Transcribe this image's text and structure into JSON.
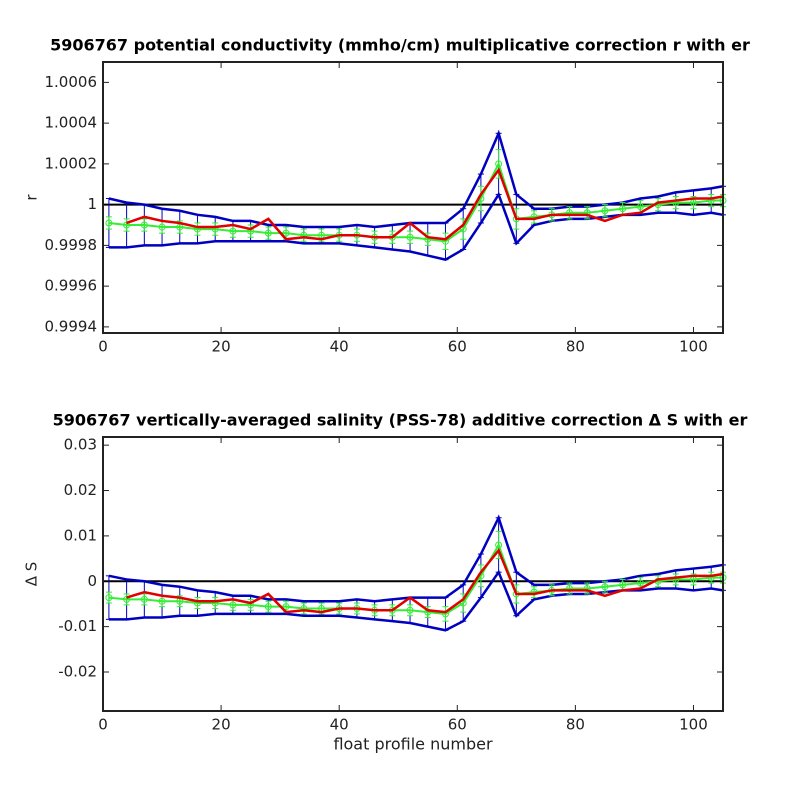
{
  "chart_data": [
    {
      "type": "line",
      "title": "5906767 potential conductivity (mmho/cm) multiplicative correction r with er",
      "ylabel": "r",
      "x": [
        1,
        4,
        7,
        10,
        13,
        16,
        19,
        22,
        25,
        28,
        31,
        34,
        37,
        40,
        43,
        46,
        49,
        52,
        55,
        58,
        61,
        64,
        67,
        70,
        73,
        76,
        79,
        82,
        85,
        88,
        91,
        94,
        97,
        100,
        103,
        105
      ],
      "xlim": [
        0,
        105
      ],
      "xticks": [
        0,
        20,
        40,
        60,
        80,
        100
      ],
      "ylim": [
        0.99937,
        1.0007
      ],
      "yticks": [
        0.9994,
        0.9996,
        0.9998,
        1,
        1.0002,
        1.0004,
        1.0006
      ],
      "hline": 1,
      "series": [
        {
          "color": "#0000c0",
          "values": [
            0.99991,
            0.9999,
            0.9999,
            0.99989,
            0.99989,
            0.99988,
            0.99988,
            0.99987,
            0.99987,
            0.99986,
            0.99986,
            0.99985,
            0.99985,
            0.99985,
            0.99985,
            0.99984,
            0.99984,
            0.99984,
            0.99983,
            0.99982,
            0.99988,
            1.00003,
            1.0002,
            0.99993,
            0.99994,
            0.99995,
            0.99996,
            0.99996,
            0.99997,
            0.99998,
            0.99999,
            1,
            1.00001,
            1.00001,
            1.00002,
            1.00002
          ],
          "errors": [
            0.00012,
            0.00011,
            0.0001,
            9e-05,
            8e-05,
            7e-05,
            6e-05,
            5e-05,
            5e-05,
            4e-05,
            4e-05,
            4e-05,
            4e-05,
            4e-05,
            5e-05,
            5e-05,
            6e-05,
            7e-05,
            8e-05,
            9e-05,
            0.0001,
            0.00012,
            0.00015,
            0.00012,
            4e-05,
            3e-05,
            3e-05,
            3e-05,
            3e-05,
            3e-05,
            4e-05,
            4e-05,
            5e-05,
            6e-05,
            6e-05,
            7e-05
          ]
        },
        {
          "color": "#33ee33",
          "marker": "o",
          "values": [
            0.99991,
            0.9999,
            0.9999,
            0.99989,
            0.99989,
            0.99988,
            0.99988,
            0.99987,
            0.99987,
            0.99986,
            0.99986,
            0.99985,
            0.99985,
            0.99985,
            0.99985,
            0.99984,
            0.99984,
            0.99984,
            0.99983,
            0.99982,
            0.99988,
            1.00003,
            1.0002,
            0.99993,
            0.99994,
            0.99995,
            0.99996,
            0.99996,
            0.99997,
            0.99998,
            0.99999,
            1,
            1.00001,
            1.00001,
            1.00002,
            1.00002
          ],
          "errors": [
            3e-05,
            3e-05,
            3e-05,
            3e-05,
            3e-05,
            3e-05,
            3e-05,
            3e-05,
            3e-05,
            3e-05,
            3e-05,
            3e-05,
            3e-05,
            3e-05,
            3e-05,
            3e-05,
            3e-05,
            3e-05,
            3e-05,
            4e-05,
            5e-05,
            6e-05,
            7e-05,
            5e-05,
            3e-05,
            3e-05,
            3e-05,
            3e-05,
            3e-05,
            3e-05,
            3e-05,
            3e-05,
            3e-05,
            3e-05,
            3e-05,
            3e-05
          ]
        },
        {
          "color": "#e00000",
          "values": [
            null,
            0.99991,
            0.99994,
            0.99992,
            0.99991,
            0.99989,
            0.99989,
            0.9999,
            0.99988,
            0.99993,
            0.99983,
            0.99984,
            0.99983,
            0.99985,
            0.99985,
            0.99984,
            0.99984,
            0.99991,
            0.99984,
            0.99983,
            0.9999,
            1.00005,
            1.00017,
            0.99993,
            0.99993,
            0.99995,
            0.99995,
            0.99995,
            0.99992,
            0.99995,
            0.99996,
            1.00001,
            1.00002,
            1.00003,
            1.00003,
            1.00004
          ]
        }
      ]
    },
    {
      "type": "line",
      "title": "5906767 vertically-averaged salinity (PSS-78) additive correction Δ S with er",
      "ylabel": "Δ S",
      "xlabel": "float profile number",
      "x": [
        1,
        4,
        7,
        10,
        13,
        16,
        19,
        22,
        25,
        28,
        31,
        34,
        37,
        40,
        43,
        46,
        49,
        52,
        55,
        58,
        61,
        64,
        67,
        70,
        73,
        76,
        79,
        82,
        85,
        88,
        91,
        94,
        97,
        100,
        103,
        105
      ],
      "xlim": [
        0,
        105
      ],
      "xticks": [
        0,
        20,
        40,
        60,
        80,
        100
      ],
      "ylim": [
        -0.0286,
        0.0318
      ],
      "yticks": [
        -0.02,
        -0.01,
        0,
        0.01,
        0.02,
        0.03
      ],
      "hline": 0,
      "series": [
        {
          "color": "#0000c0",
          "values": [
            -0.0036,
            -0.004,
            -0.004,
            -0.0044,
            -0.0044,
            -0.0048,
            -0.0048,
            -0.0052,
            -0.0052,
            -0.0056,
            -0.0056,
            -0.006,
            -0.006,
            -0.006,
            -0.006,
            -0.0064,
            -0.0064,
            -0.0064,
            -0.0068,
            -0.0072,
            -0.0048,
            0.0012,
            0.008,
            -0.0028,
            -0.0024,
            -0.002,
            -0.0016,
            -0.0016,
            -0.0012,
            -0.0008,
            -0.0004,
            0,
            0.0004,
            0.0004,
            0.0008,
            0.0008
          ],
          "errors": [
            0.0048,
            0.0044,
            0.004,
            0.0036,
            0.0032,
            0.0028,
            0.0024,
            0.002,
            0.002,
            0.0016,
            0.0016,
            0.0016,
            0.0016,
            0.0016,
            0.002,
            0.002,
            0.0024,
            0.0028,
            0.0032,
            0.0036,
            0.004,
            0.0048,
            0.006,
            0.0048,
            0.0016,
            0.0012,
            0.0012,
            0.0012,
            0.0012,
            0.0012,
            0.0016,
            0.0016,
            0.002,
            0.0024,
            0.0024,
            0.0028
          ]
        },
        {
          "color": "#33ee33",
          "marker": "o",
          "values": [
            -0.0036,
            -0.004,
            -0.004,
            -0.0044,
            -0.0044,
            -0.0048,
            -0.0048,
            -0.0052,
            -0.0052,
            -0.0056,
            -0.0056,
            -0.006,
            -0.006,
            -0.006,
            -0.006,
            -0.0064,
            -0.0064,
            -0.0064,
            -0.0068,
            -0.0072,
            -0.0048,
            0.0012,
            0.008,
            -0.0028,
            -0.0024,
            -0.002,
            -0.0016,
            -0.0016,
            -0.0012,
            -0.0008,
            -0.0004,
            0,
            0.0004,
            0.0004,
            0.0008,
            0.0008
          ],
          "errors": [
            0.0012,
            0.0012,
            0.0012,
            0.0012,
            0.0012,
            0.0012,
            0.0012,
            0.0012,
            0.0012,
            0.0012,
            0.0012,
            0.0012,
            0.0012,
            0.0012,
            0.0012,
            0.0012,
            0.0012,
            0.0012,
            0.0012,
            0.0016,
            0.002,
            0.0024,
            0.003,
            0.002,
            0.0012,
            0.0012,
            0.0012,
            0.0012,
            0.0012,
            0.0012,
            0.0012,
            0.0012,
            0.0012,
            0.0012,
            0.0012,
            0.0012
          ]
        },
        {
          "color": "#e00000",
          "values": [
            null,
            -0.0036,
            -0.0024,
            -0.0032,
            -0.0036,
            -0.0044,
            -0.0044,
            -0.004,
            -0.0048,
            -0.0028,
            -0.0068,
            -0.0064,
            -0.0068,
            -0.006,
            -0.006,
            -0.0064,
            -0.0064,
            -0.0036,
            -0.0064,
            -0.0068,
            -0.004,
            0.002,
            0.0068,
            -0.0028,
            -0.0028,
            -0.002,
            -0.002,
            -0.002,
            -0.0032,
            -0.002,
            -0.0016,
            0.0004,
            0.0008,
            0.0012,
            0.0012,
            0.0016
          ]
        }
      ]
    }
  ]
}
